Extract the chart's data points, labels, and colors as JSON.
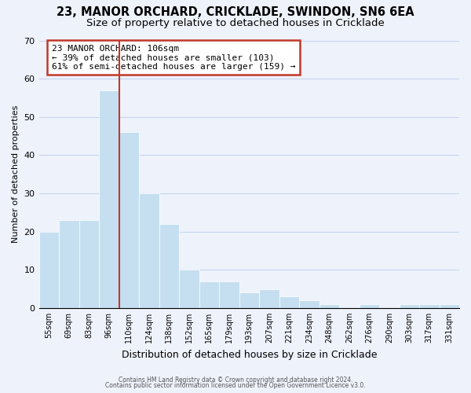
{
  "title": "23, MANOR ORCHARD, CRICKLADE, SWINDON, SN6 6EA",
  "subtitle": "Size of property relative to detached houses in Cricklade",
  "xlabel": "Distribution of detached houses by size in Cricklade",
  "ylabel": "Number of detached properties",
  "bar_labels": [
    "55sqm",
    "69sqm",
    "83sqm",
    "96sqm",
    "110sqm",
    "124sqm",
    "138sqm",
    "152sqm",
    "165sqm",
    "179sqm",
    "193sqm",
    "207sqm",
    "221sqm",
    "234sqm",
    "248sqm",
    "262sqm",
    "276sqm",
    "290sqm",
    "303sqm",
    "317sqm",
    "331sqm"
  ],
  "bar_values": [
    20,
    23,
    23,
    57,
    46,
    30,
    22,
    10,
    7,
    7,
    4,
    5,
    3,
    2,
    1,
    0,
    1,
    0,
    1,
    1,
    1
  ],
  "bar_color": "#c5dff0",
  "vline_color": "#c0392b",
  "vline_x_index": 3.5,
  "ylim": [
    0,
    70
  ],
  "yticks": [
    0,
    10,
    20,
    30,
    40,
    50,
    60,
    70
  ],
  "annotation_title": "23 MANOR ORCHARD: 106sqm",
  "annotation_line1": "← 39% of detached houses are smaller (103)",
  "annotation_line2": "61% of semi-detached houses are larger (159) →",
  "annotation_box_color": "white",
  "annotation_box_edge": "#c0392b",
  "footer1": "Contains HM Land Registry data © Crown copyright and database right 2024.",
  "footer2": "Contains public sector information licensed under the Open Government Licence v3.0.",
  "bg_color": "#eef2fb",
  "grid_color": "#c8d4ee",
  "title_fontsize": 10.5,
  "subtitle_fontsize": 9.5,
  "bar_edgecolor": "white"
}
